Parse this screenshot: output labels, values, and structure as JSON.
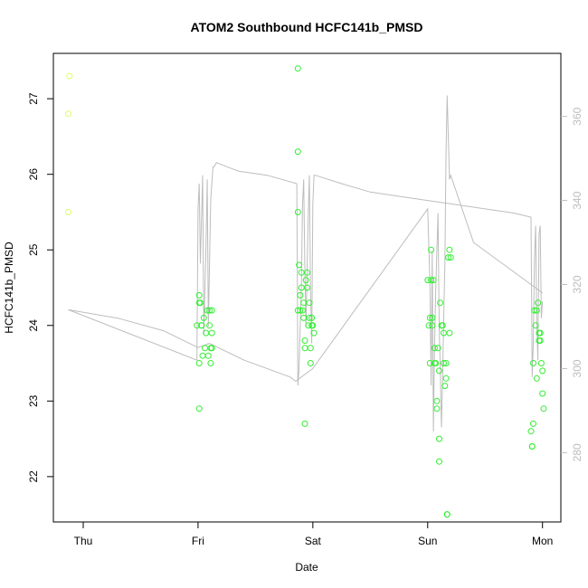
{
  "chart_data": {
    "type": "scatter",
    "title": "ATOM2 Southbound HCFC141b_PMSD",
    "xlabel": "Date",
    "ylabel": "HCFC141b_PMSD",
    "x_ticks": [
      {
        "label": "Thu",
        "day": 0
      },
      {
        "label": "Fri",
        "day": 1
      },
      {
        "label": "Sat",
        "day": 2
      },
      {
        "label": "Sun",
        "day": 3
      },
      {
        "label": "Mon",
        "day": 4
      }
    ],
    "xlim": [
      -0.26,
      4.16
    ],
    "ylim": [
      21.4,
      27.6
    ],
    "y_ticks": [
      22,
      23,
      24,
      25,
      26,
      27
    ],
    "y2lim": [
      263.5,
      375
    ],
    "y2_ticks": [
      280,
      300,
      320,
      340,
      360
    ],
    "colors": {
      "early_points": "#d9ff66",
      "points": "#33ee33",
      "line": "#bdbdbd",
      "axis": "#000000",
      "axis_right": "#bdbdbd"
    },
    "series": [
      {
        "points": [
          [
            -0.12,
            27.3
          ],
          [
            -0.13,
            26.8
          ],
          [
            -0.13,
            25.5
          ],
          [
            0.99,
            24.0
          ],
          [
            1.01,
            24.3
          ],
          [
            1.01,
            24.4
          ],
          [
            1.02,
            24.3
          ],
          [
            1.01,
            23.5
          ],
          [
            1.03,
            24.0
          ],
          [
            1.03,
            24.0
          ],
          [
            1.04,
            23.6
          ],
          [
            1.05,
            24.1
          ],
          [
            1.06,
            23.7
          ],
          [
            1.07,
            23.9
          ],
          [
            1.08,
            24.2
          ],
          [
            1.09,
            23.6
          ],
          [
            1.1,
            24.0
          ],
          [
            1.1,
            24.2
          ],
          [
            1.11,
            23.7
          ],
          [
            1.11,
            23.5
          ],
          [
            1.12,
            23.9
          ],
          [
            1.12,
            23.7
          ],
          [
            1.01,
            22.9
          ],
          [
            1.12,
            24.2
          ],
          [
            1.87,
            27.4
          ],
          [
            1.87,
            26.3
          ],
          [
            1.87,
            25.5
          ],
          [
            1.87,
            24.2
          ],
          [
            1.88,
            24.8
          ],
          [
            1.89,
            24.2
          ],
          [
            1.89,
            24.4
          ],
          [
            1.9,
            24.7
          ],
          [
            1.9,
            24.5
          ],
          [
            1.91,
            24.2
          ],
          [
            1.92,
            24.1
          ],
          [
            1.92,
            24.3
          ],
          [
            1.93,
            23.8
          ],
          [
            1.93,
            23.7
          ],
          [
            1.94,
            24.6
          ],
          [
            1.95,
            24.5
          ],
          [
            1.95,
            24.7
          ],
          [
            1.96,
            24.0
          ],
          [
            1.97,
            24.3
          ],
          [
            1.97,
            24.1
          ],
          [
            1.98,
            23.5
          ],
          [
            1.98,
            23.7
          ],
          [
            1.99,
            24.0
          ],
          [
            1.99,
            24.1
          ],
          [
            2.0,
            24.0
          ],
          [
            2.01,
            23.9
          ],
          [
            1.93,
            22.7
          ],
          [
            3.0,
            24.6
          ],
          [
            3.01,
            24.0
          ],
          [
            3.02,
            24.1
          ],
          [
            3.02,
            23.5
          ],
          [
            3.03,
            25.0
          ],
          [
            3.03,
            24.6
          ],
          [
            3.04,
            24.1
          ],
          [
            3.04,
            24.0
          ],
          [
            3.05,
            24.6
          ],
          [
            3.06,
            23.7
          ],
          [
            3.06,
            23.5
          ],
          [
            3.07,
            23.5
          ],
          [
            3.08,
            23.0
          ],
          [
            3.08,
            22.9
          ],
          [
            3.09,
            23.7
          ],
          [
            3.1,
            23.4
          ],
          [
            3.1,
            22.5
          ],
          [
            3.1,
            22.2
          ],
          [
            3.11,
            24.3
          ],
          [
            3.12,
            24.0
          ],
          [
            3.13,
            24.0
          ],
          [
            3.14,
            23.9
          ],
          [
            3.14,
            23.5
          ],
          [
            3.15,
            23.2
          ],
          [
            3.16,
            23.3
          ],
          [
            3.16,
            23.5
          ],
          [
            3.17,
            21.5
          ],
          [
            3.17,
            21.5
          ],
          [
            3.18,
            24.9
          ],
          [
            3.19,
            25.0
          ],
          [
            3.19,
            23.9
          ],
          [
            3.2,
            24.9
          ],
          [
            3.9,
            22.6
          ],
          [
            3.91,
            22.4
          ],
          [
            3.91,
            22.4
          ],
          [
            3.92,
            22.7
          ],
          [
            3.92,
            23.5
          ],
          [
            3.93,
            24.2
          ],
          [
            3.94,
            24.0
          ],
          [
            3.95,
            23.3
          ],
          [
            3.95,
            24.2
          ],
          [
            3.96,
            24.3
          ],
          [
            3.97,
            23.8
          ],
          [
            3.97,
            23.9
          ],
          [
            3.98,
            23.9
          ],
          [
            3.98,
            23.8
          ],
          [
            3.99,
            23.5
          ],
          [
            4.0,
            23.4
          ],
          [
            4.0,
            23.1
          ],
          [
            4.01,
            22.9
          ]
        ]
      },
      {
        "axis": "right",
        "points": [
          [
            -0.13,
            314
          ],
          [
            0.99,
            302
          ],
          [
            1.0,
            338
          ],
          [
            1.01,
            344
          ],
          [
            1.02,
            325
          ],
          [
            1.04,
            346
          ],
          [
            1.05,
            308
          ],
          [
            1.07,
            330
          ],
          [
            1.08,
            345
          ],
          [
            1.09,
            310
          ],
          [
            1.11,
            340
          ],
          [
            1.13,
            348
          ],
          [
            1.14,
            348
          ],
          [
            1.16,
            349
          ],
          [
            1.35,
            347
          ],
          [
            1.6,
            346
          ],
          [
            1.86,
            344
          ],
          [
            1.87,
            296
          ],
          [
            1.88,
            300
          ],
          [
            1.9,
            320
          ],
          [
            1.91,
            339
          ],
          [
            1.92,
            345
          ],
          [
            1.93,
            324
          ],
          [
            1.94,
            310
          ],
          [
            1.96,
            337
          ],
          [
            1.97,
            346
          ],
          [
            1.98,
            318
          ],
          [
            1.99,
            306
          ],
          [
            2.0,
            339
          ],
          [
            2.01,
            346
          ],
          [
            2.02,
            346
          ],
          [
            2.25,
            344
          ],
          [
            2.5,
            342
          ],
          [
            2.75,
            341
          ],
          [
            3.0,
            340
          ],
          [
            3.25,
            339
          ],
          [
            3.5,
            338
          ],
          [
            3.75,
            337
          ],
          [
            3.9,
            336
          ],
          [
            3.91,
            298
          ],
          [
            3.92,
            306
          ],
          [
            3.93,
            326
          ],
          [
            3.94,
            334
          ],
          [
            3.95,
            312
          ],
          [
            3.96,
            302
          ],
          [
            3.97,
            332
          ],
          [
            3.98,
            334
          ],
          [
            3.99,
            312
          ],
          [
            4.0,
            316
          ]
        ]
      },
      {
        "axis": "right",
        "points": [
          [
            -0.13,
            314
          ],
          [
            0.3,
            312
          ],
          [
            0.7,
            309
          ],
          [
            1.0,
            305
          ],
          [
            1.1,
            306
          ],
          [
            1.4,
            302
          ],
          [
            1.8,
            298
          ],
          [
            1.85,
            297
          ],
          [
            2.0,
            300
          ],
          [
            3.0,
            338
          ],
          [
            3.02,
            320
          ],
          [
            3.03,
            296
          ],
          [
            3.04,
            328
          ],
          [
            3.05,
            285
          ],
          [
            3.06,
            306
          ],
          [
            3.07,
            319
          ],
          [
            3.09,
            337
          ],
          [
            3.1,
            310
          ],
          [
            3.11,
            300
          ],
          [
            3.12,
            286
          ],
          [
            3.13,
            298
          ],
          [
            3.14,
            312
          ],
          [
            3.15,
            325
          ],
          [
            3.16,
            352
          ],
          [
            3.17,
            365
          ],
          [
            3.18,
            355
          ],
          [
            3.19,
            345
          ],
          [
            3.2,
            346
          ],
          [
            3.4,
            330
          ],
          [
            3.7,
            324
          ],
          [
            3.9,
            320
          ],
          [
            4.0,
            318
          ]
        ]
      }
    ]
  }
}
